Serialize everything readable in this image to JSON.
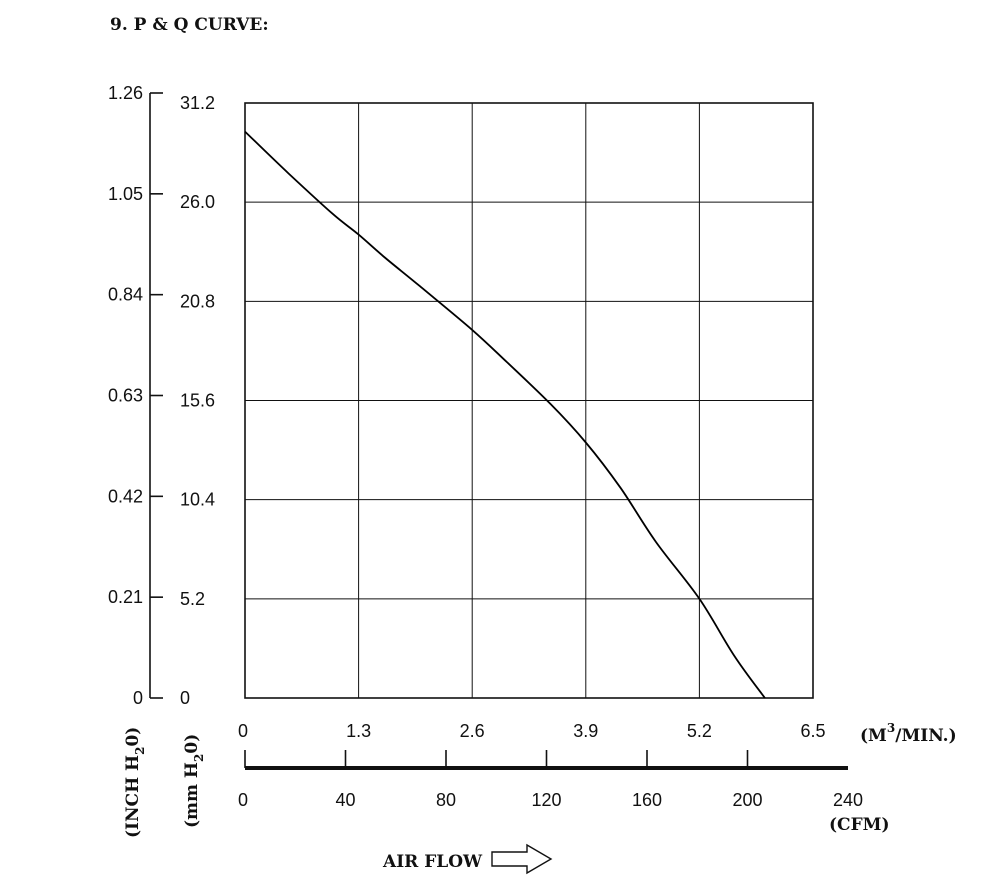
{
  "title": "9. P & Q CURVE:",
  "chart_data": {
    "type": "line",
    "x_axis_m3min": {
      "ticks": [
        "0",
        "1.3",
        "2.6",
        "3.9",
        "5.2",
        "6.5"
      ],
      "range": [
        0,
        6.5
      ],
      "unit_main": "(M",
      "unit_sup": "3",
      "unit_tail": "/MIN.)"
    },
    "x_axis_cfm": {
      "ticks": [
        "0",
        "40",
        "80",
        "120",
        "160",
        "200",
        "240"
      ],
      "range": [
        0,
        240
      ],
      "unit": "(CFM)"
    },
    "y_axis_mmh2o": {
      "ticks": [
        "0",
        "5.2",
        "10.4",
        "15.6",
        "20.8",
        "26.0",
        "31.2"
      ],
      "range": [
        0,
        31.2
      ],
      "label_main": "(mm H",
      "label_sub": "2",
      "label_tail": "0)"
    },
    "y_axis_inchh2o": {
      "ticks": [
        "0",
        "0.21",
        "0.42",
        "0.63",
        "0.84",
        "1.05",
        "1.26"
      ],
      "range": [
        0,
        1.26
      ],
      "label_main": "(INCH H",
      "label_sub": "2",
      "label_tail": "0)"
    },
    "grid": true,
    "series": [
      {
        "x_unit": "M3/MIN",
        "y_unit": "mm H2O",
        "points": [
          [
            0,
            29.7
          ],
          [
            0.5,
            27.5
          ],
          [
            1.0,
            25.4
          ],
          [
            1.3,
            24.3
          ],
          [
            1.6,
            23.1
          ],
          [
            2.0,
            21.6
          ],
          [
            2.6,
            19.3
          ],
          [
            3.0,
            17.6
          ],
          [
            3.5,
            15.4
          ],
          [
            3.9,
            13.4
          ],
          [
            4.3,
            11.0
          ],
          [
            4.7,
            8.2
          ],
          [
            5.2,
            5.2
          ],
          [
            5.6,
            2.2
          ],
          [
            5.95,
            0
          ]
        ]
      }
    ]
  },
  "airflow_label": "AIR FLOW"
}
